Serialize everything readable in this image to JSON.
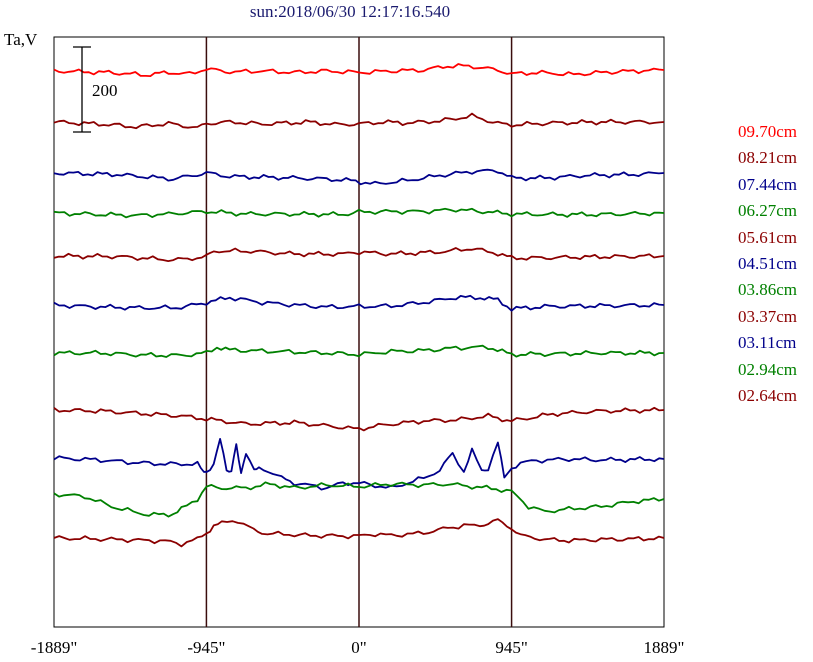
{
  "header": {
    "title": "sun:2018/06/30 12:17:16.540",
    "unit_label": "Ta,V"
  },
  "chart_data": {
    "type": "line",
    "title": "sun:2018/06/30 12:17:16.540",
    "ylabel": "Ta,V",
    "scale_bar": {
      "label": "200",
      "value": 200
    },
    "x_ticks": [
      "-1889\"",
      "-945\"",
      "0\"",
      "945\"",
      "1889\""
    ],
    "x_tick_values": [
      -1889,
      -945,
      0,
      945,
      1889
    ],
    "vertical_markers": [
      -945,
      0,
      945
    ],
    "xlim": [
      -1889,
      1889
    ],
    "grid": false,
    "legend_position": "right",
    "series": [
      {
        "name": "09.70cm",
        "color": "#ff0000",
        "baseline": 0,
        "points": [
          [
            -1889,
            0
          ],
          [
            -1550,
            -3
          ],
          [
            -1320,
            -8
          ],
          [
            -1180,
            -3
          ],
          [
            -1050,
            -6
          ],
          [
            -945,
            4
          ],
          [
            -800,
            -2
          ],
          [
            -600,
            0
          ],
          [
            -400,
            -3
          ],
          [
            -200,
            0
          ],
          [
            0,
            -3
          ],
          [
            200,
            0
          ],
          [
            400,
            2
          ],
          [
            550,
            10
          ],
          [
            680,
            10
          ],
          [
            860,
            2
          ],
          [
            945,
            -6
          ],
          [
            1100,
            -3
          ],
          [
            1330,
            -7
          ],
          [
            1500,
            -3
          ],
          [
            1700,
            0
          ],
          [
            1889,
            2
          ]
        ]
      },
      {
        "name": "08.21cm",
        "color": "#8b0000",
        "baseline": 0,
        "points": [
          [
            -1889,
            0
          ],
          [
            -1550,
            -5
          ],
          [
            -1380,
            -10
          ],
          [
            -1180,
            -3
          ],
          [
            -1000,
            -12
          ],
          [
            -945,
            -3
          ],
          [
            -800,
            0
          ],
          [
            -600,
            -4
          ],
          [
            -300,
            0
          ],
          [
            -150,
            -5
          ],
          [
            0,
            -4
          ],
          [
            150,
            0
          ],
          [
            300,
            -2
          ],
          [
            500,
            2
          ],
          [
            700,
            12
          ],
          [
            860,
            -3
          ],
          [
            945,
            -6
          ],
          [
            1200,
            -2
          ],
          [
            1500,
            0
          ],
          [
            1889,
            0
          ]
        ]
      },
      {
        "name": "07.44cm",
        "color": "#00008b",
        "baseline": 0,
        "points": [
          [
            -1889,
            0
          ],
          [
            -1500,
            -3
          ],
          [
            -1150,
            -12
          ],
          [
            -945,
            0
          ],
          [
            -800,
            -7
          ],
          [
            -500,
            -9
          ],
          [
            -200,
            -12
          ],
          [
            -50,
            -15
          ],
          [
            100,
            -22
          ],
          [
            300,
            -15
          ],
          [
            500,
            -5
          ],
          [
            700,
            3
          ],
          [
            860,
            5
          ],
          [
            945,
            -10
          ],
          [
            1150,
            -10
          ],
          [
            1400,
            -5
          ],
          [
            1700,
            -3
          ],
          [
            1889,
            0
          ]
        ]
      },
      {
        "name": "06.27cm",
        "color": "#008000",
        "baseline": 0,
        "points": [
          [
            -1889,
            0
          ],
          [
            -1600,
            -3
          ],
          [
            -1380,
            -5
          ],
          [
            -1180,
            -2
          ],
          [
            -945,
            3
          ],
          [
            -700,
            -2
          ],
          [
            -400,
            -2
          ],
          [
            -100,
            -3
          ],
          [
            0,
            2
          ],
          [
            200,
            3
          ],
          [
            400,
            3
          ],
          [
            600,
            7
          ],
          [
            800,
            2
          ],
          [
            945,
            -2
          ],
          [
            1200,
            -3
          ],
          [
            1500,
            -3
          ],
          [
            1889,
            0
          ]
        ]
      },
      {
        "name": "05.61cm",
        "color": "#8b0000",
        "baseline": 0,
        "points": [
          [
            -1889,
            0
          ],
          [
            -1500,
            -1
          ],
          [
            -1150,
            -8
          ],
          [
            -945,
            -2
          ],
          [
            -900,
            10
          ],
          [
            -700,
            10
          ],
          [
            -400,
            4
          ],
          [
            -100,
            4
          ],
          [
            0,
            8
          ],
          [
            200,
            4
          ],
          [
            500,
            8
          ],
          [
            700,
            15
          ],
          [
            860,
            5
          ],
          [
            945,
            -4
          ],
          [
            1100,
            -4
          ],
          [
            1400,
            -2
          ],
          [
            1889,
            0
          ]
        ]
      },
      {
        "name": "04.51cm",
        "color": "#00008b",
        "baseline": 0,
        "points": [
          [
            -1889,
            0
          ],
          [
            -1600,
            -4
          ],
          [
            -1300,
            -6
          ],
          [
            -1100,
            -5
          ],
          [
            -945,
            5
          ],
          [
            -800,
            15
          ],
          [
            -600,
            5
          ],
          [
            -400,
            0
          ],
          [
            -200,
            -4
          ],
          [
            0,
            -3
          ],
          [
            200,
            -2
          ],
          [
            400,
            5
          ],
          [
            600,
            15
          ],
          [
            750,
            15
          ],
          [
            860,
            10
          ],
          [
            945,
            -8
          ],
          [
            1150,
            -3
          ],
          [
            1400,
            -2
          ],
          [
            1889,
            0
          ]
        ]
      },
      {
        "name": "03.86cm",
        "color": "#008000",
        "baseline": 0,
        "points": [
          [
            -1889,
            0
          ],
          [
            -1600,
            0
          ],
          [
            -1350,
            -4
          ],
          [
            -1100,
            -5
          ],
          [
            -945,
            0
          ],
          [
            -880,
            12
          ],
          [
            -800,
            6
          ],
          [
            -600,
            4
          ],
          [
            -400,
            2
          ],
          [
            -200,
            0
          ],
          [
            0,
            -3
          ],
          [
            200,
            3
          ],
          [
            400,
            5
          ],
          [
            600,
            10
          ],
          [
            800,
            12
          ],
          [
            945,
            -3
          ],
          [
            1150,
            -2
          ],
          [
            1500,
            0
          ],
          [
            1889,
            0
          ]
        ]
      },
      {
        "name": "03.37cm",
        "color": "#8b0000",
        "baseline": 0,
        "points": [
          [
            -1889,
            0
          ],
          [
            -1600,
            -2
          ],
          [
            -1350,
            -7
          ],
          [
            -1100,
            -12
          ],
          [
            -945,
            -18
          ],
          [
            -700,
            -28
          ],
          [
            -400,
            -25
          ],
          [
            -100,
            -35
          ],
          [
            0,
            -38
          ],
          [
            150,
            -30
          ],
          [
            400,
            -22
          ],
          [
            600,
            -20
          ],
          [
            800,
            -12
          ],
          [
            945,
            -22
          ],
          [
            1200,
            -8
          ],
          [
            1500,
            -2
          ],
          [
            1889,
            0
          ]
        ]
      },
      {
        "name": "03.11cm",
        "color": "#00008b",
        "baseline": 0,
        "points": [
          [
            -1889,
            0
          ],
          [
            -1600,
            -4
          ],
          [
            -1400,
            -9
          ],
          [
            -1200,
            -12
          ],
          [
            -1000,
            -12
          ],
          [
            -960,
            -30
          ],
          [
            -945,
            -30
          ],
          [
            -900,
            -10
          ],
          [
            -860,
            40
          ],
          [
            -820,
            -28
          ],
          [
            -790,
            -28
          ],
          [
            -760,
            30
          ],
          [
            -730,
            -28
          ],
          [
            -700,
            10
          ],
          [
            -650,
            -26
          ],
          [
            -620,
            -20
          ],
          [
            -560,
            -26
          ],
          [
            -480,
            -40
          ],
          [
            -400,
            -50
          ],
          [
            -300,
            -55
          ],
          [
            -200,
            -60
          ],
          [
            -100,
            -50
          ],
          [
            0,
            -50
          ],
          [
            100,
            -55
          ],
          [
            200,
            -60
          ],
          [
            300,
            -50
          ],
          [
            400,
            -40
          ],
          [
            500,
            -25
          ],
          [
            580,
            10
          ],
          [
            650,
            -28
          ],
          [
            700,
            15
          ],
          [
            760,
            -25
          ],
          [
            800,
            -20
          ],
          [
            860,
            30
          ],
          [
            900,
            -40
          ],
          [
            945,
            -20
          ],
          [
            1000,
            -10
          ],
          [
            1100,
            -5
          ],
          [
            1300,
            -2
          ],
          [
            1500,
            -4
          ],
          [
            1889,
            -2
          ]
        ]
      },
      {
        "name": "02.94cm",
        "color": "#008000",
        "baseline": 0,
        "points": [
          [
            -1889,
            0
          ],
          [
            -1700,
            -5
          ],
          [
            -1500,
            -28
          ],
          [
            -1300,
            -42
          ],
          [
            -1150,
            -40
          ],
          [
            -1100,
            -30
          ],
          [
            -1000,
            -10
          ],
          [
            -945,
            15
          ],
          [
            -850,
            12
          ],
          [
            -700,
            12
          ],
          [
            -550,
            20
          ],
          [
            -400,
            12
          ],
          [
            -200,
            18
          ],
          [
            0,
            15
          ],
          [
            200,
            20
          ],
          [
            400,
            18
          ],
          [
            550,
            20
          ],
          [
            700,
            15
          ],
          [
            850,
            10
          ],
          [
            945,
            5
          ],
          [
            1050,
            -25
          ],
          [
            1150,
            -35
          ],
          [
            1300,
            -30
          ],
          [
            1500,
            -25
          ],
          [
            1700,
            -15
          ],
          [
            1889,
            -10
          ]
        ]
      },
      {
        "name": "02.64cm",
        "color": "#8b0000",
        "baseline": 0,
        "points": [
          [
            -1889,
            0
          ],
          [
            -1600,
            -2
          ],
          [
            -1400,
            -4
          ],
          [
            -1200,
            -6
          ],
          [
            -1100,
            -12
          ],
          [
            -1000,
            -2
          ],
          [
            -945,
            10
          ],
          [
            -900,
            25
          ],
          [
            -850,
            30
          ],
          [
            -750,
            35
          ],
          [
            -680,
            20
          ],
          [
            -600,
            10
          ],
          [
            -500,
            8
          ],
          [
            -300,
            5
          ],
          [
            -100,
            4
          ],
          [
            0,
            4
          ],
          [
            100,
            8
          ],
          [
            200,
            5
          ],
          [
            400,
            10
          ],
          [
            550,
            20
          ],
          [
            650,
            25
          ],
          [
            750,
            25
          ],
          [
            800,
            30
          ],
          [
            860,
            35
          ],
          [
            945,
            20
          ],
          [
            1000,
            5
          ],
          [
            1150,
            -3
          ],
          [
            1300,
            -5
          ],
          [
            1500,
            -3
          ],
          [
            1700,
            -2
          ],
          [
            1889,
            0
          ]
        ]
      }
    ]
  },
  "colors": {
    "title": "#1a1a6e",
    "frame": "#000000",
    "markers": "#3a0d0d"
  }
}
